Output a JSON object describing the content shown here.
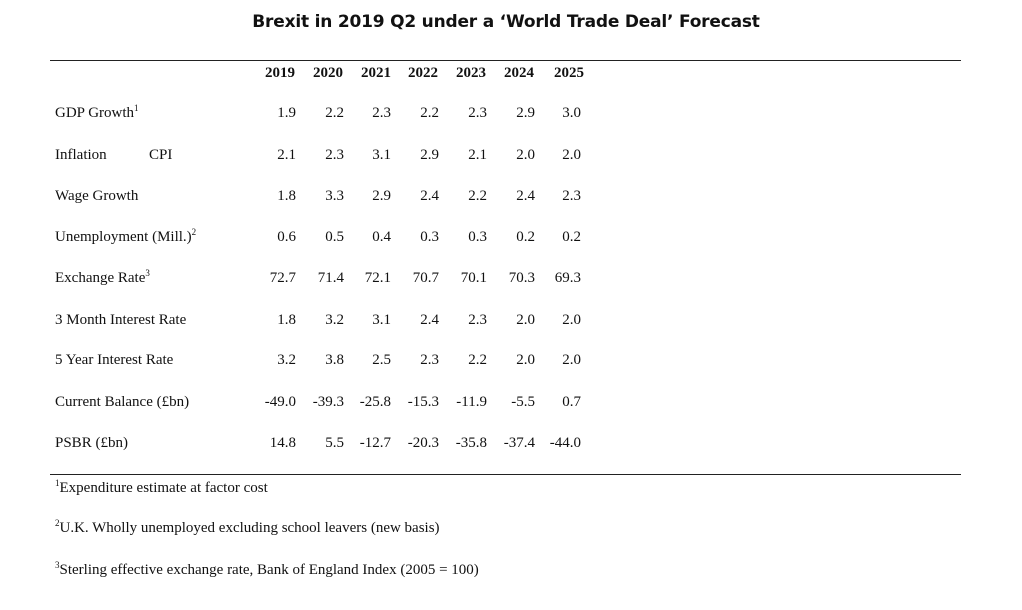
{
  "title": "Brexit in 2019 Q2 under a ‘World Trade Deal’ Forecast",
  "years": [
    "2019",
    "2020",
    "2021",
    "2022",
    "2023",
    "2024",
    "2025"
  ],
  "rows": [
    {
      "label": "GDP Growth",
      "sup": "1",
      "values": [
        "1.9",
        "2.2",
        "2.3",
        "2.2",
        "2.3",
        "2.9",
        "3.0"
      ]
    },
    {
      "label": "Inflation",
      "sub": "CPI",
      "values": [
        "2.1",
        "2.3",
        "3.1",
        "2.9",
        "2.1",
        "2.0",
        "2.0"
      ]
    },
    {
      "label": "Wage Growth",
      "values": [
        "1.8",
        "3.3",
        "2.9",
        "2.4",
        "2.2",
        "2.4",
        "2.3"
      ]
    },
    {
      "label": "Unemployment (Mill.)",
      "sup": "2",
      "values": [
        "0.6",
        "0.5",
        "0.4",
        "0.3",
        "0.3",
        "0.2",
        "0.2"
      ]
    },
    {
      "label": "Exchange Rate",
      "sup": "3",
      "values": [
        "72.7",
        "71.4",
        "72.1",
        "70.7",
        "70.1",
        "70.3",
        "69.3"
      ]
    },
    {
      "label": "3 Month Interest Rate",
      "values": [
        "1.8",
        "3.2",
        "3.1",
        "2.4",
        "2.3",
        "2.0",
        "2.0"
      ]
    },
    {
      "label": "5 Year Interest Rate",
      "values": [
        "3.2",
        "3.8",
        "2.5",
        "2.3",
        "2.2",
        "2.0",
        "2.0"
      ]
    },
    {
      "label": "Current Balance (£bn)",
      "values": [
        "-49.0",
        "-39.3",
        "-25.8",
        "-15.3",
        "-11.9",
        "-5.5",
        "0.7"
      ]
    },
    {
      "label": "PSBR (£bn)",
      "values": [
        "14.8",
        "5.5",
        "-12.7",
        "-20.3",
        "-35.8",
        "-37.4",
        "-44.0"
      ]
    }
  ],
  "footnotes": [
    {
      "mark": "1",
      "text": "Expenditure estimate at factor cost"
    },
    {
      "mark": "2",
      "text": "U.K. Wholly unemployed excluding school leavers (new basis)"
    },
    {
      "mark": "3",
      "text": "Sterling effective exchange rate, Bank of England Index (2005 = 100)"
    }
  ]
}
